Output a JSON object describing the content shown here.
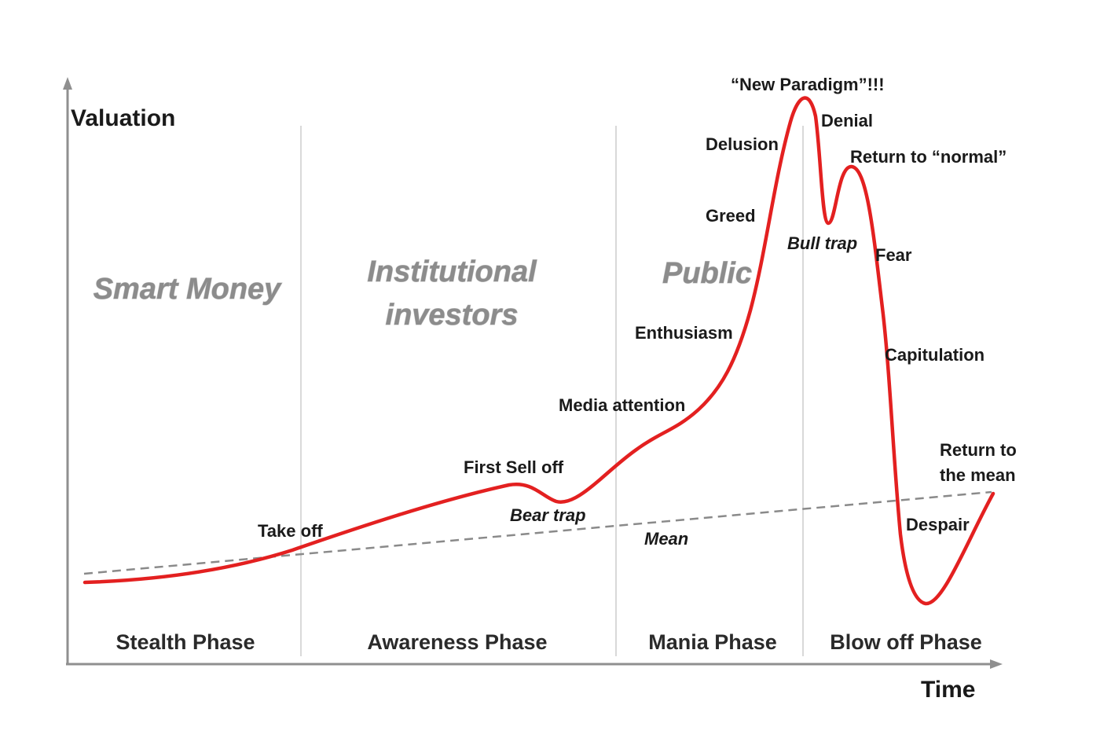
{
  "axes": {
    "y_title": "Valuation",
    "x_title": "Time"
  },
  "colors": {
    "curve": "#e32020",
    "mean_line": "#8a8a8a",
    "axis": "#8f8f8f",
    "divider": "#d9d9d9",
    "crowd_text": "#8c8c8c"
  },
  "phases": [
    "Stealth Phase",
    "Awareness Phase",
    "Mania Phase",
    "Blow off Phase"
  ],
  "participants": {
    "smart_money": "Smart Money",
    "institutional_line1": "Institutional",
    "institutional_line2": "investors",
    "public": "Public"
  },
  "stages": {
    "take_off": "Take off",
    "first_sell_off": "First Sell off",
    "bear_trap": "Bear trap",
    "media_attention": "Media attention",
    "enthusiasm": "Enthusiasm",
    "greed": "Greed",
    "delusion": "Delusion",
    "new_paradigm": "“New Paradigm”!!!",
    "denial": "Denial",
    "return_to_normal": "Return to “normal”",
    "bull_trap": "Bull trap",
    "fear": "Fear",
    "capitulation": "Capitulation",
    "despair": "Despair",
    "return_to_mean_line1": "Return to",
    "return_to_mean_line2": "the mean",
    "mean": "Mean"
  }
}
